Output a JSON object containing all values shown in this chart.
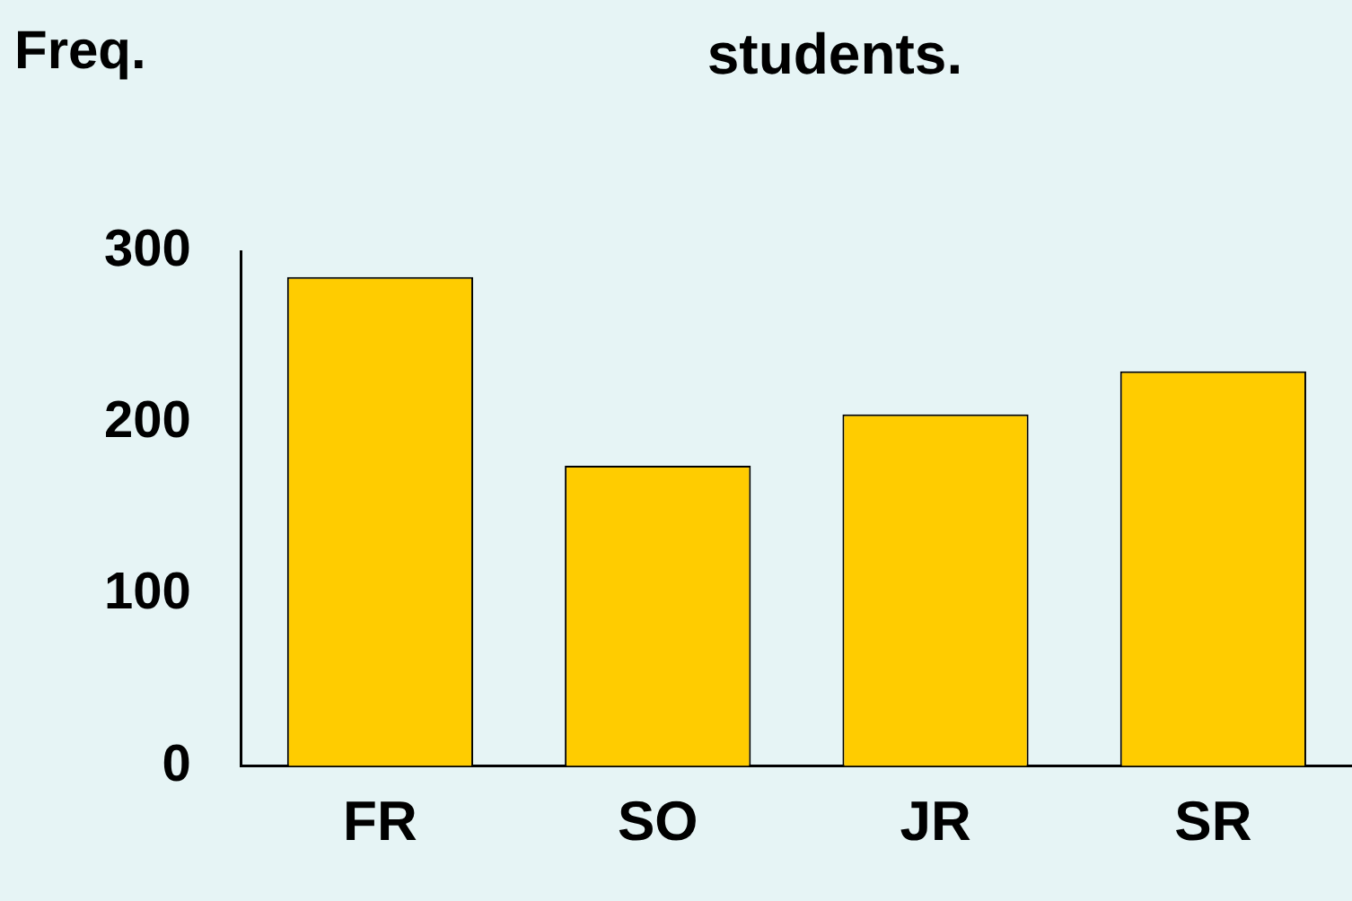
{
  "chart_data": {
    "type": "bar",
    "title": "students.",
    "ylabel": "Freq.",
    "categories": [
      "FR",
      "SO",
      "JR",
      "SR"
    ],
    "values": [
      285,
      175,
      205,
      230
    ],
    "color": "#ffcc00",
    "ylim": [
      0,
      300
    ],
    "yticks": [
      0,
      100,
      200,
      300
    ],
    "grid": false,
    "legend": false
  }
}
